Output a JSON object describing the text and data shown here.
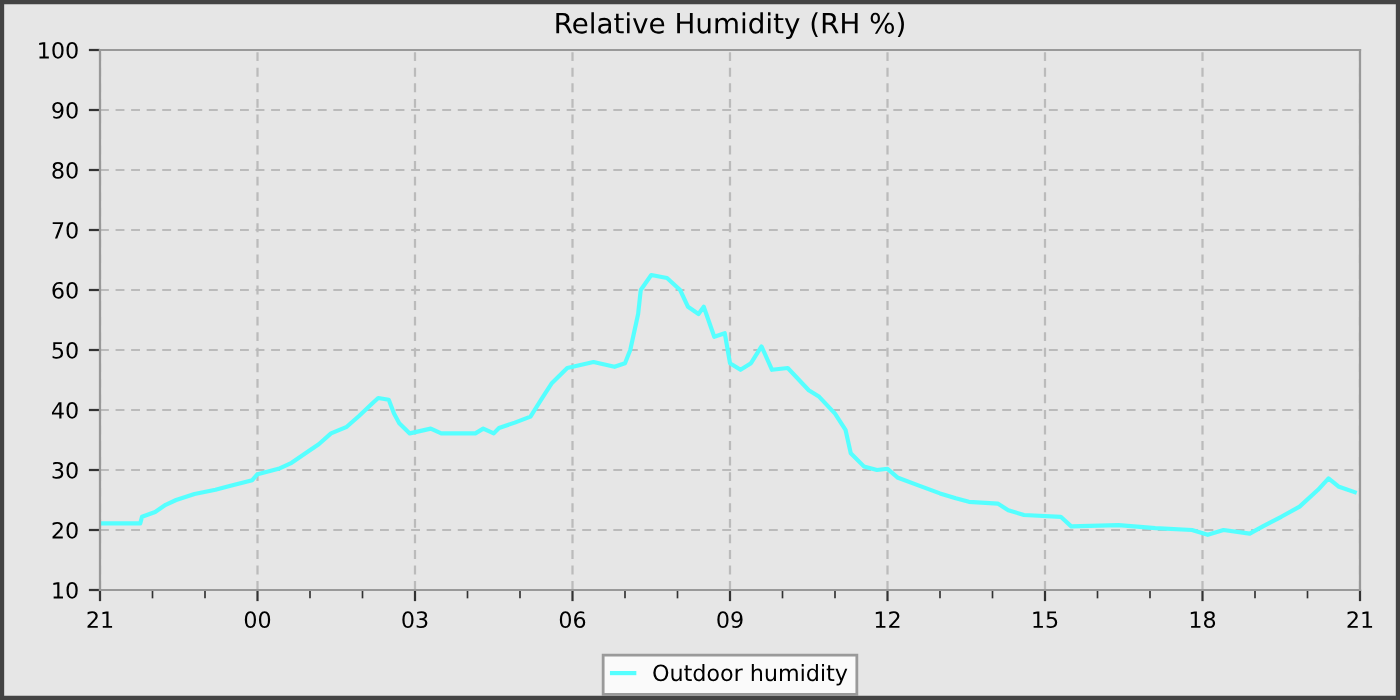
{
  "chart_data": {
    "type": "line",
    "title": "Relative Humidity (RH %)",
    "series": [
      {
        "name": "Outdoor humidity",
        "color": "#55ffff",
        "x": [
          "2000-01-01T21:00",
          "2000-01-01T21:46",
          "2000-01-01T21:48",
          "2000-01-01T22:03",
          "2000-01-01T22:15",
          "2000-01-01T22:27",
          "2000-01-01T22:48",
          "2000-01-01T23:12",
          "2000-01-01T23:27",
          "2000-01-01T23:54",
          "2000-01-02T00:00",
          "2000-01-02T00:24",
          "2000-01-02T00:39",
          "2000-01-02T00:59",
          "2000-01-02T01:10",
          "2000-01-02T01:24",
          "2000-01-02T01:42",
          "2000-01-02T01:56",
          "2000-01-02T02:12",
          "2000-01-02T02:18",
          "2000-01-02T02:30",
          "2000-01-02T02:36",
          "2000-01-02T02:42",
          "2000-01-02T02:54",
          "2000-01-02T03:18",
          "2000-01-02T03:30",
          "2000-01-02T04:09",
          "2000-01-02T04:18",
          "2000-01-02T04:30",
          "2000-01-02T04:36",
          "2000-01-02T04:54",
          "2000-01-02T05:12",
          "2000-01-02T05:24",
          "2000-01-02T05:36",
          "2000-01-02T05:54",
          "2000-01-02T06:24",
          "2000-01-02T06:48",
          "2000-01-02T07:00",
          "2000-01-02T07:06",
          "2000-01-02T07:15",
          "2000-01-02T07:18",
          "2000-01-02T07:30",
          "2000-01-02T07:48",
          "2000-01-02T08:03",
          "2000-01-02T08:12",
          "2000-01-02T08:24",
          "2000-01-02T08:30",
          "2000-01-02T08:42",
          "2000-01-02T08:54",
          "2000-01-02T09:00",
          "2000-01-02T09:12",
          "2000-01-02T09:24",
          "2000-01-02T09:36",
          "2000-01-02T09:48",
          "2000-01-02T10:06",
          "2000-01-02T10:30",
          "2000-01-02T10:42",
          "2000-01-02T11:00",
          "2000-01-02T11:12",
          "2000-01-02T11:18",
          "2000-01-02T11:33",
          "2000-01-02T11:48",
          "2000-01-02T12:00",
          "2000-01-02T12:12",
          "2000-01-02T12:36",
          "2000-01-02T13:00",
          "2000-01-02T13:18",
          "2000-01-02T13:33",
          "2000-01-02T14:06",
          "2000-01-02T14:18",
          "2000-01-02T14:36",
          "2000-01-02T15:18",
          "2000-01-02T15:30",
          "2000-01-02T16:24",
          "2000-01-02T17:06",
          "2000-01-02T17:48",
          "2000-01-02T18:06",
          "2000-01-02T18:24",
          "2000-01-02T18:54",
          "2000-01-02T19:09",
          "2000-01-02T19:30",
          "2000-01-02T19:51",
          "2000-01-02T20:12",
          "2000-01-02T20:24",
          "2000-01-02T20:36",
          "2000-01-02T20:54"
        ],
        "values": [
          21.1,
          21.1,
          22.2,
          23,
          24.2,
          25,
          26,
          26.7,
          27.3,
          28.3,
          29.3,
          30.2,
          31.2,
          33.2,
          34.3,
          36.1,
          37.2,
          39,
          41.2,
          42,
          41.7,
          39.4,
          37.8,
          36.1,
          36.9,
          36.1,
          36.1,
          36.9,
          36.1,
          37,
          37.9,
          38.9,
          41.7,
          44.4,
          47,
          48,
          47.2,
          47.8,
          50,
          56,
          60,
          62.5,
          62,
          60,
          57.2,
          56,
          57.2,
          52.2,
          52.8,
          47.8,
          46.7,
          47.8,
          50.6,
          46.7,
          47,
          43.3,
          42.2,
          39.4,
          36.7,
          32.8,
          30.6,
          30,
          30.2,
          28.7,
          27.4,
          26.1,
          25.3,
          24.7,
          24.4,
          23.3,
          22.5,
          22.2,
          20.6,
          20.8,
          20.3,
          20,
          19.2,
          20,
          19.4,
          20.6,
          22.2,
          23.9,
          26.7,
          28.6,
          27.2,
          26.3
        ]
      }
    ],
    "xlim": [
      "2000-01-01T21:00",
      "2000-01-02T21:00"
    ],
    "xticks": [
      {
        "value": "2000-01-01T21:00",
        "label": "21"
      },
      {
        "value": "2000-01-01T22:00",
        "label": null
      },
      {
        "value": "2000-01-01T23:00",
        "label": null
      },
      {
        "value": "2000-01-02T00:00",
        "label": "00"
      },
      {
        "value": "2000-01-02T01:00",
        "label": null
      },
      {
        "value": "2000-01-02T02:00",
        "label": null
      },
      {
        "value": "2000-01-02T03:00",
        "label": "03"
      },
      {
        "value": "2000-01-02T04:00",
        "label": null
      },
      {
        "value": "2000-01-02T05:00",
        "label": null
      },
      {
        "value": "2000-01-02T06:00",
        "label": "06"
      },
      {
        "value": "2000-01-02T07:00",
        "label": null
      },
      {
        "value": "2000-01-02T08:00",
        "label": null
      },
      {
        "value": "2000-01-02T09:00",
        "label": "09"
      },
      {
        "value": "2000-01-02T10:00",
        "label": null
      },
      {
        "value": "2000-01-02T11:00",
        "label": null
      },
      {
        "value": "2000-01-02T12:00",
        "label": "12"
      },
      {
        "value": "2000-01-02T13:00",
        "label": null
      },
      {
        "value": "2000-01-02T14:00",
        "label": null
      },
      {
        "value": "2000-01-02T15:00",
        "label": "15"
      },
      {
        "value": "2000-01-02T16:00",
        "label": null
      },
      {
        "value": "2000-01-02T17:00",
        "label": null
      },
      {
        "value": "2000-01-02T18:00",
        "label": "18"
      },
      {
        "value": "2000-01-02T19:00",
        "label": null
      },
      {
        "value": "2000-01-02T20:00",
        "label": null
      },
      {
        "value": "2000-01-02T21:00",
        "label": "21"
      }
    ],
    "ylim": [
      10,
      100
    ],
    "yticks": [
      10,
      20,
      30,
      40,
      50,
      60,
      70,
      80,
      90,
      100
    ],
    "grid": true,
    "legend": "bottom",
    "marker": "none",
    "line_style": "solid"
  }
}
